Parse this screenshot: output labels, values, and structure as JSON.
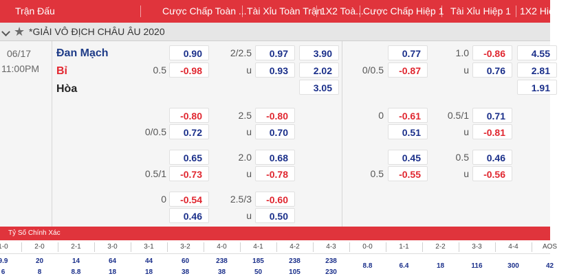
{
  "header": {
    "match": "Trận Đấu",
    "hdp_ft": "Cược Chấp Toàn ...",
    "ou_ft": "Tài Xỉu Toàn Trận",
    "x12_ft": "1X2 Toà...",
    "hdp_h1": "Cược Chấp Hiệp 1",
    "ou_h1": "Tài Xỉu Hiệp 1",
    "x12_h1": "1X2 Hiệ"
  },
  "league": {
    "title": "*GIẢI VÔ ĐỊCH CHÂU ÂU 2020"
  },
  "match": {
    "date": "06/17",
    "time": "11:00PM",
    "home": "Đan Mạch",
    "away": "Bỉ",
    "draw": "Hòa",
    "ft": {
      "hdp": [
        {
          "home_label": "",
          "home": "0.90",
          "away_label": "0.5",
          "away": "-0.98"
        },
        {
          "home_label": "",
          "home": "-0.80",
          "away_label": "0/0.5",
          "away": "0.72"
        },
        {
          "home_label": "",
          "home": "0.65",
          "away_label": "0.5/1",
          "away": "-0.73"
        },
        {
          "home_label": "0",
          "home": "-0.54",
          "away_label": "",
          "away": "0.46"
        }
      ],
      "ou": [
        {
          "line": "2/2.5",
          "over": "0.97",
          "u": "u",
          "under": "0.93"
        },
        {
          "line": "2.5",
          "over": "-0.80",
          "u": "u",
          "under": "0.70"
        },
        {
          "line": "2.0",
          "over": "0.68",
          "u": "u",
          "under": "-0.78"
        },
        {
          "line": "2.5/3",
          "over": "-0.60",
          "u": "u",
          "under": "0.50"
        }
      ],
      "x12": [
        "3.90",
        "2.02",
        "3.05"
      ]
    },
    "h1": {
      "hdp": [
        {
          "home_label": "",
          "home": "0.77",
          "away_label": "0/0.5",
          "away": "-0.87"
        },
        {
          "home_label": "0",
          "home": "-0.61",
          "away_label": "",
          "away": "0.51"
        },
        {
          "home_label": "",
          "home": "0.45",
          "away_label": "0.5",
          "away": "-0.55"
        }
      ],
      "ou": [
        {
          "line": "1.0",
          "over": "-0.86",
          "u": "u",
          "under": "0.76"
        },
        {
          "line": "0.5/1",
          "over": "0.71",
          "u": "u",
          "under": "-0.81"
        },
        {
          "line": "0.5",
          "over": "0.46",
          "u": "u",
          "under": "-0.56"
        }
      ],
      "x12": [
        "4.55",
        "2.81",
        "1.91"
      ]
    }
  },
  "correct_score": {
    "title": "Tỷ Số Chính Xác",
    "scores": [
      "1-0",
      "2-0",
      "2-1",
      "3-0",
      "3-1",
      "3-2",
      "4-0",
      "4-1",
      "4-2",
      "4-3",
      "0-0",
      "1-1",
      "2-2",
      "3-3",
      "4-4",
      "AOS"
    ],
    "row1": [
      "9.9",
      "20",
      "14",
      "64",
      "44",
      "60",
      "238",
      "185",
      "238",
      "238",
      "8.8",
      "6.4",
      "18",
      "116",
      "300",
      "42"
    ],
    "row2": [
      "6",
      "8",
      "8.8",
      "18",
      "18",
      "38",
      "38",
      "50",
      "105",
      "230",
      "",
      "",
      "",
      "",
      "",
      ""
    ]
  },
  "colors": {
    "header_bg": "#e0343c",
    "positive": "#1a2f8a",
    "negative": "#e0262f"
  }
}
